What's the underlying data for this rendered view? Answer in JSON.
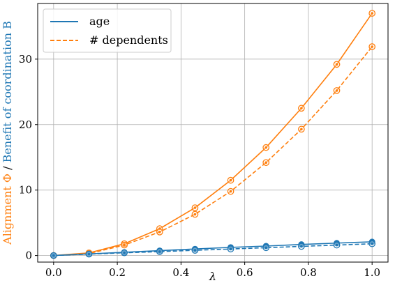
{
  "chart_data": {
    "type": "line",
    "xlabel": "λ",
    "ylabel": {
      "part1": "Alignment Φ",
      "separator": " / ",
      "part2": "Benefit of coordination B",
      "part1_color": "#ff7f0e",
      "part2_color": "#1f77b4"
    },
    "xlim": [
      -0.05,
      1.05
    ],
    "ylim": [
      -1,
      38.5
    ],
    "xticks": [
      0.0,
      0.2,
      0.4,
      0.6,
      0.8,
      1.0
    ],
    "xtick_labels": [
      "0.0",
      "0.2",
      "0.4",
      "0.6",
      "0.8",
      "1.0"
    ],
    "yticks": [
      0,
      10,
      20,
      30
    ],
    "ytick_labels": [
      "0",
      "10",
      "20",
      "30"
    ],
    "grid": true,
    "legend_position": "top-left",
    "x": [
      0.0,
      0.111,
      0.222,
      0.333,
      0.444,
      0.556,
      0.667,
      0.778,
      0.889,
      1.0
    ],
    "series": [
      {
        "name": "age",
        "legend": true,
        "role": "alignment",
        "color": "#ff7f0e",
        "style": "solid",
        "marker": "circle-ring",
        "values": [
          0.0,
          0.4,
          1.8,
          4.1,
          7.3,
          11.5,
          16.5,
          22.5,
          29.2,
          37.0
        ]
      },
      {
        "name": "# dependents",
        "legend": true,
        "role": "alignment",
        "color": "#ff7f0e",
        "style": "dashed",
        "marker": "circle-ring",
        "values": [
          0.0,
          0.3,
          1.6,
          3.6,
          6.3,
          9.8,
          14.2,
          19.3,
          25.2,
          31.9
        ]
      },
      {
        "name": "age",
        "legend": false,
        "role": "benefit",
        "color": "#1f77b4",
        "style": "solid",
        "marker": "circle-filled",
        "values": [
          0.0,
          0.25,
          0.5,
          0.75,
          1.0,
          1.25,
          1.45,
          1.7,
          1.9,
          2.1
        ]
      },
      {
        "name": "# dependents",
        "legend": false,
        "role": "benefit",
        "color": "#1f77b4",
        "style": "dashed",
        "marker": "circle-ring",
        "values": [
          0.0,
          0.22,
          0.42,
          0.6,
          0.8,
          1.0,
          1.2,
          1.4,
          1.6,
          1.8
        ]
      }
    ],
    "legend_entries": [
      {
        "label": "age",
        "color": "#1f77b4",
        "style": "solid"
      },
      {
        "label": "# dependents",
        "color": "#ff7f0e",
        "style": "dashed"
      }
    ]
  }
}
